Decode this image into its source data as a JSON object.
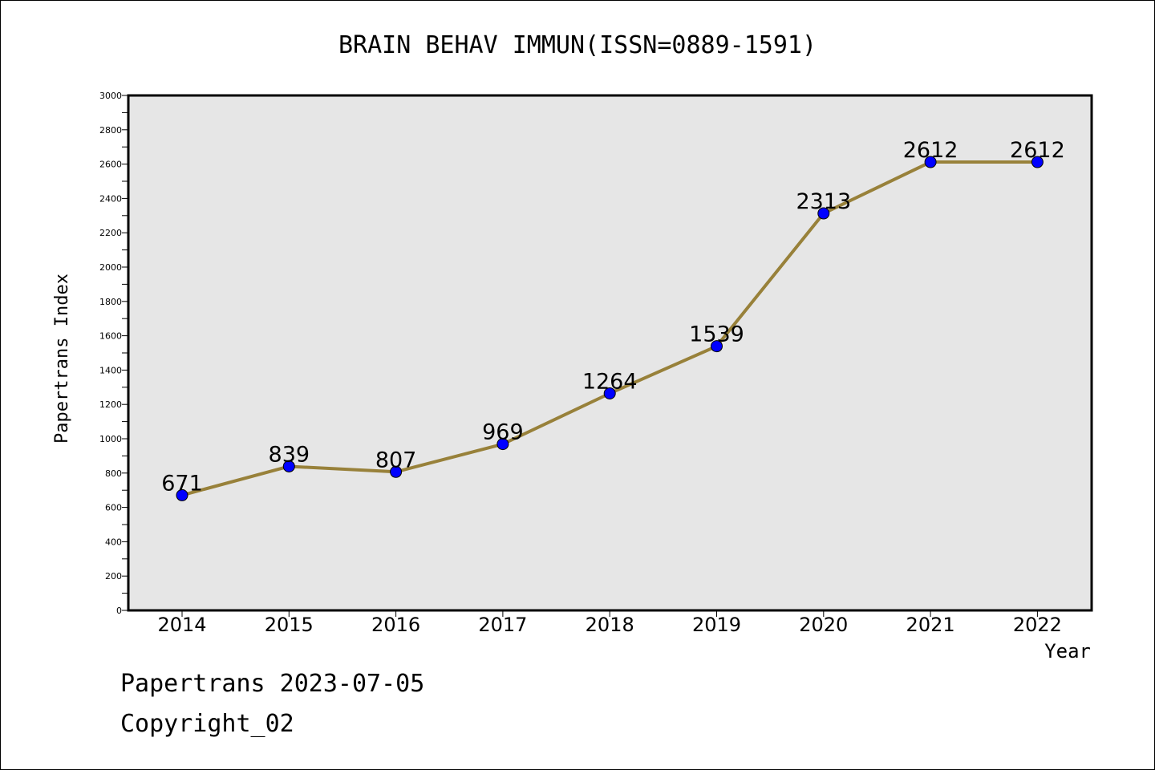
{
  "chart_data": {
    "type": "line",
    "title": "BRAIN BEHAV IMMUN(ISSN=0889-1591)",
    "xlabel": "Year",
    "ylabel": "Papertrans Index",
    "ylim": [
      0,
      3000
    ],
    "yticks": [
      0,
      200,
      400,
      600,
      800,
      1000,
      1200,
      1400,
      1600,
      1800,
      2000,
      2200,
      2400,
      2600,
      2800,
      3000
    ],
    "grid": false,
    "legend": "none",
    "categories": [
      "2014",
      "2015",
      "2016",
      "2017",
      "2018",
      "2019",
      "2020",
      "2021",
      "2022"
    ],
    "values": [
      671,
      839,
      807,
      969,
      1264,
      1539,
      2313,
      2612,
      2612
    ],
    "data_labels": [
      "671",
      "839",
      "807",
      "969",
      "1264",
      "1539",
      "2313",
      "2612",
      "2612"
    ],
    "colors": {
      "line": "#98813a",
      "marker": "#0000ff",
      "plot_background": "#e6e6e6"
    }
  },
  "footer": {
    "source": "Papertrans 2023-07-05",
    "copyright": "Copyright_02"
  }
}
